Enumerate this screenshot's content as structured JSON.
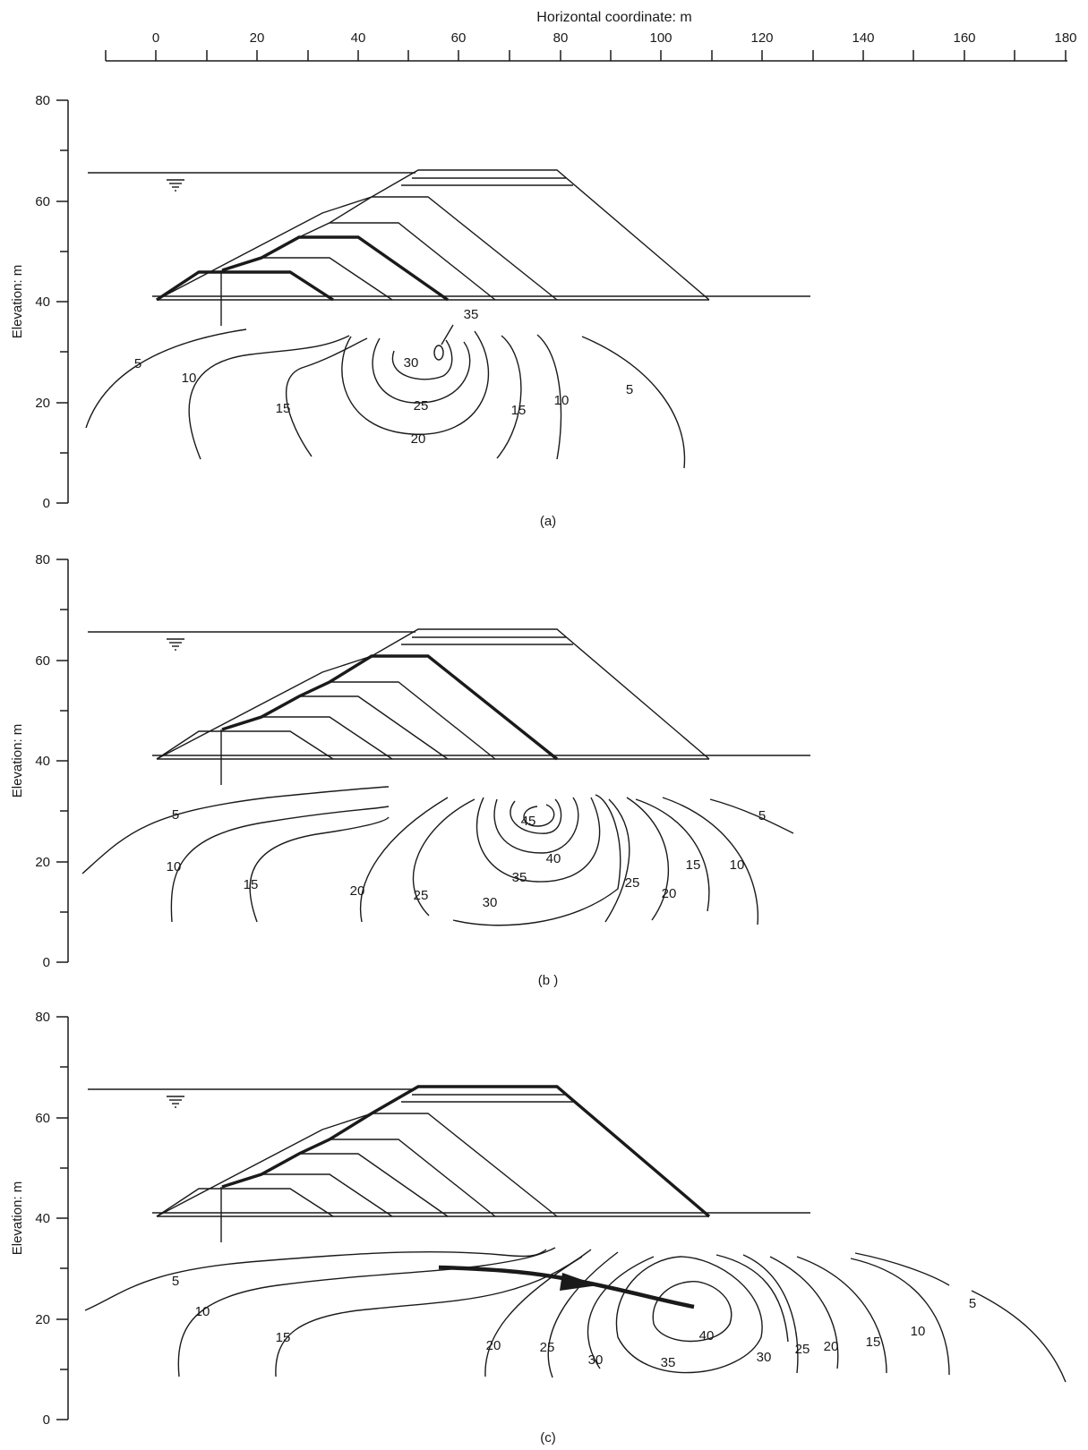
{
  "top_axis": {
    "title": "Horizontal coordinate: m",
    "ticks": [
      "0",
      "20",
      "40",
      "60",
      "80",
      "100",
      "120",
      "140",
      "160",
      "180"
    ]
  },
  "panels": [
    {
      "caption": "(a)",
      "ylabel": "Elevation: m",
      "yticks": [
        "80",
        "60",
        "40",
        "20",
        "0"
      ],
      "contour_labels": [
        "5",
        "10",
        "15",
        "20",
        "25",
        "30",
        "35",
        "15",
        "10",
        "5"
      ]
    },
    {
      "caption": "(b )",
      "ylabel": "Elevation: m",
      "yticks": [
        "80",
        "60",
        "40",
        "20",
        "0"
      ],
      "contour_labels": [
        "5",
        "10",
        "15",
        "20",
        "25",
        "30",
        "35",
        "40",
        "45",
        "25",
        "20",
        "15",
        "10",
        "5"
      ]
    },
    {
      "caption": "(c)",
      "ylabel": "Elevation: m",
      "yticks": [
        "80",
        "60",
        "40",
        "20",
        "0"
      ],
      "contour_labels": [
        "5",
        "10",
        "15",
        "20",
        "25",
        "30",
        "35",
        "40",
        "30",
        "25",
        "20",
        "15",
        "10",
        "5"
      ]
    }
  ],
  "colors": {
    "ink": "#1a1a1a",
    "background": "#ffffff"
  }
}
